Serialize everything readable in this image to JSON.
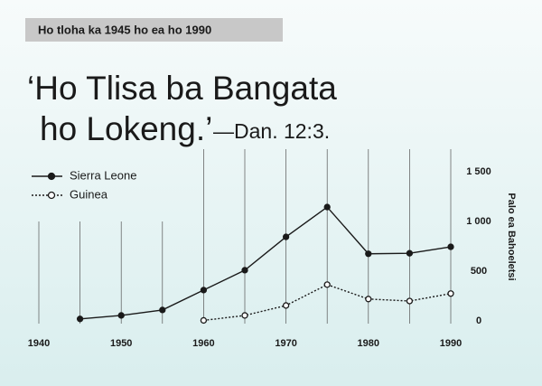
{
  "chart_data": {
    "type": "line",
    "label": "Ho tloha ka 1945 ho ea ho 1990",
    "title": "‘Ho Tlisa ba Bangata ho Lokeng.’",
    "title_reference": "—Dan. 12:3.",
    "y_axis_label": "Palo ea Bahoeletsi",
    "x": [
      1945,
      1950,
      1955,
      1960,
      1965,
      1970,
      1975,
      1980,
      1985,
      1990
    ],
    "series": [
      {
        "name": "Sierra Leone",
        "color": "#1a1a1a",
        "values": [
          20,
          55,
          110,
          310,
          510,
          845,
          1145,
          675,
          680,
          745
        ]
      },
      {
        "name": "Guinea",
        "color": "#1a1a1a",
        "values": [
          null,
          null,
          null,
          5,
          55,
          155,
          365,
          220,
          200,
          275
        ]
      }
    ],
    "xlim": [
      1940,
      1990
    ],
    "xticks": [
      1940,
      1950,
      1960,
      1970,
      1980,
      1990
    ],
    "ylim": [
      0,
      1500
    ],
    "yticks": [
      0,
      500,
      {
        "value": 1000,
        "label": "1 000"
      },
      {
        "value": 1500,
        "label": "1 500"
      }
    ]
  }
}
